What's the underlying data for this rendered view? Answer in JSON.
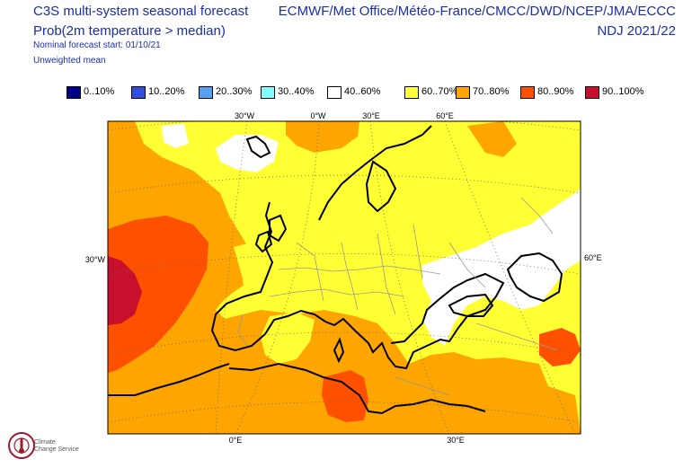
{
  "header": {
    "title_line1": "C3S multi-system seasonal forecast",
    "title_line2": "Prob(2m temperature > median)",
    "subtitle_line1": "Nominal forecast start: 01/10/21",
    "subtitle_line2": "Unweighted mean",
    "centres": "ECMWF/Met Office/Météo-France/CMCC/DWD/NCEP/JMA/ECCC",
    "period": "NDJ 2021/22"
  },
  "legend": [
    {
      "label": "0..10%",
      "color": "#00008b"
    },
    {
      "label": "10..20%",
      "color": "#3050e0"
    },
    {
      "label": "20..30%",
      "color": "#55a0f0"
    },
    {
      "label": "30..40%",
      "color": "#80ffff"
    },
    {
      "label": "40..60%",
      "color": "#ffffff"
    },
    {
      "label": "60..70%",
      "color": "#ffff33"
    },
    {
      "label": "70..80%",
      "color": "#ffa500"
    },
    {
      "label": "80..90%",
      "color": "#ff5000"
    },
    {
      "label": "90..100%",
      "color": "#c8102e"
    }
  ],
  "map": {
    "region": "Europe",
    "grid_labels_top": [
      "30°W",
      "0°W",
      "30°E",
      "60°E"
    ],
    "grid_labels_bottom": [
      "0°E",
      "30°E"
    ],
    "grid_label_left": "30°W",
    "grid_label_right": "60°E",
    "colors": {
      "white": "#ffffff",
      "yellow": "#ffff33",
      "orange": "#ffa500",
      "dark_orange": "#ff5000",
      "red": "#c8102e",
      "coast": "#000000",
      "border": "#999999"
    }
  },
  "logo": {
    "name": "Climate Change Service",
    "text_line1": "Climate",
    "text_line2": "Change Service"
  }
}
